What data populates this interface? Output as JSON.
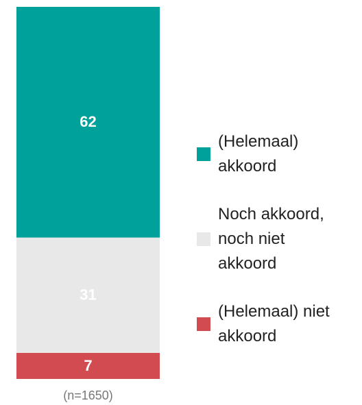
{
  "chart_data": {
    "type": "bar",
    "stacked": true,
    "categories": [
      "(n=1650)"
    ],
    "series": [
      {
        "name": "(Helemaal) akkoord",
        "color": "#00a19b",
        "values": [
          62
        ]
      },
      {
        "name": "Noch akkoord, noch niet akkoord",
        "color": "#e8e8e8",
        "values": [
          31
        ]
      },
      {
        "name": "(Helemaal) niet akkoord",
        "color": "#d14b51",
        "values": [
          7
        ]
      }
    ],
    "ylim": [
      0,
      100
    ],
    "legend": "right"
  }
}
